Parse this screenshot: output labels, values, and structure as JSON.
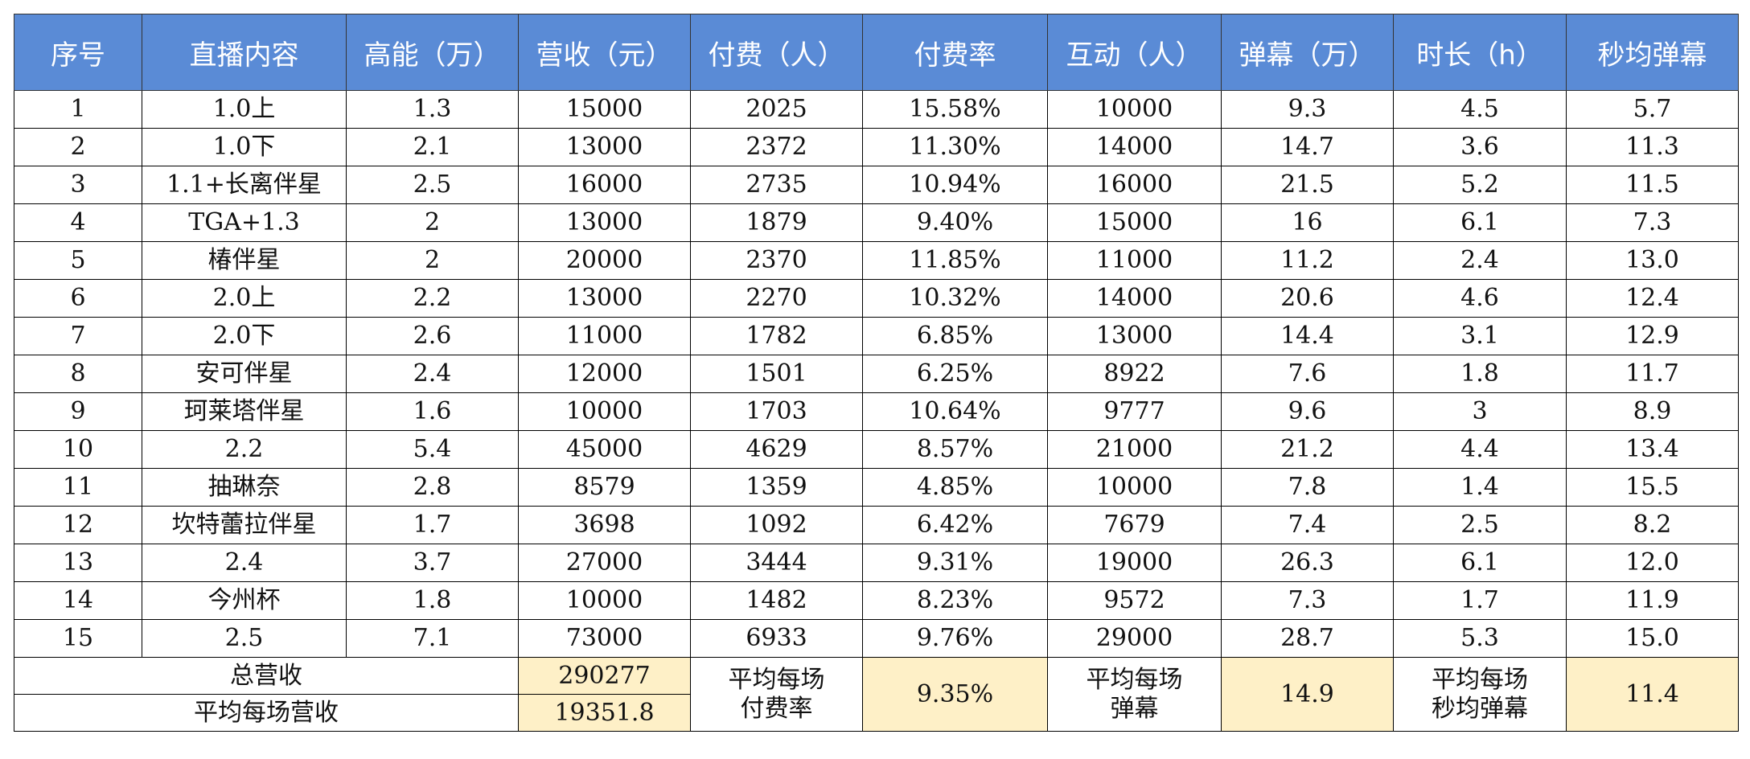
{
  "table": {
    "header": [
      "序号",
      "直播内容",
      "高能（万）",
      "营收（元）",
      "付费（人）",
      "付费率",
      "互动（人）",
      "弹幕（万）",
      "时长（h）",
      "秒均弹幕"
    ],
    "rows": [
      [
        "1",
        "1.0上",
        "1.3",
        "15000",
        "2025",
        "15.58%",
        "10000",
        "9.3",
        "4.5",
        "5.7"
      ],
      [
        "2",
        "1.0下",
        "2.1",
        "13000",
        "2372",
        "11.30%",
        "14000",
        "14.7",
        "3.6",
        "11.3"
      ],
      [
        "3",
        "1.1+长离伴星",
        "2.5",
        "16000",
        "2735",
        "10.94%",
        "16000",
        "21.5",
        "5.2",
        "11.5"
      ],
      [
        "4",
        "TGA+1.3",
        "2",
        "13000",
        "1879",
        "9.40%",
        "15000",
        "16",
        "6.1",
        "7.3"
      ],
      [
        "5",
        "椿伴星",
        "2",
        "20000",
        "2370",
        "11.85%",
        "11000",
        "11.2",
        "2.4",
        "13.0"
      ],
      [
        "6",
        "2.0上",
        "2.2",
        "13000",
        "2270",
        "10.32%",
        "14000",
        "20.6",
        "4.6",
        "12.4"
      ],
      [
        "7",
        "2.0下",
        "2.6",
        "11000",
        "1782",
        "6.85%",
        "13000",
        "14.4",
        "3.1",
        "12.9"
      ],
      [
        "8",
        "安可伴星",
        "2.4",
        "12000",
        "1501",
        "6.25%",
        "8922",
        "7.6",
        "1.8",
        "11.7"
      ],
      [
        "9",
        "珂莱塔伴星",
        "1.6",
        "10000",
        "1703",
        "10.64%",
        "9777",
        "9.6",
        "3",
        "8.9"
      ],
      [
        "10",
        "2.2",
        "5.4",
        "45000",
        "4629",
        "8.57%",
        "21000",
        "21.2",
        "4.4",
        "13.4"
      ],
      [
        "11",
        "抽琳奈",
        "2.8",
        "8579",
        "1359",
        "4.85%",
        "10000",
        "7.8",
        "1.4",
        "15.5"
      ],
      [
        "12",
        "坎特蕾拉伴星",
        "1.7",
        "3698",
        "1092",
        "6.42%",
        "7679",
        "7.4",
        "2.5",
        "8.2"
      ],
      [
        "13",
        "2.4",
        "3.7",
        "27000",
        "3444",
        "9.31%",
        "19000",
        "26.3",
        "6.1",
        "12.0"
      ],
      [
        "14",
        "今州杯",
        "1.8",
        "10000",
        "1482",
        "8.23%",
        "9572",
        "7.3",
        "1.7",
        "11.9"
      ],
      [
        "15",
        "2.5",
        "7.1",
        "73000",
        "6933",
        "9.76%",
        "29000",
        "28.7",
        "5.3",
        "15.0"
      ]
    ],
    "summary": {
      "total_revenue_label": "总营收",
      "total_revenue": "290277",
      "avg_revenue_label": "平均每场营收",
      "avg_revenue": "19351.8",
      "avg_pay_rate_label": "平均每场\n付费率",
      "avg_pay_rate": "9.35%",
      "avg_danmaku_label": "平均每场\n弹幕",
      "avg_danmaku": "14.9",
      "avg_danmaku_per_sec_label": "平均每场\n秒均弹幕",
      "avg_danmaku_per_sec": "11.4"
    }
  }
}
